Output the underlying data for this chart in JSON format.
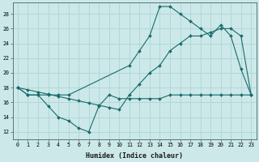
{
  "xlabel": "Humidex (Indice chaleur)",
  "ylabel": "",
  "background_color": "#cce8e8",
  "grid_color": "#b0d8d8",
  "line_color": "#1a6b6b",
  "xlim": [
    -0.5,
    23.5
  ],
  "ylim": [
    11,
    29.5
  ],
  "yticks": [
    12,
    14,
    16,
    18,
    20,
    22,
    24,
    26,
    28
  ],
  "xticks": [
    0,
    1,
    2,
    3,
    4,
    5,
    6,
    7,
    8,
    9,
    10,
    11,
    12,
    13,
    14,
    15,
    16,
    17,
    18,
    19,
    20,
    21,
    22,
    23
  ],
  "series1_x": [
    0,
    1,
    2,
    3,
    4,
    5,
    6,
    7,
    8,
    9,
    10,
    11,
    12,
    13,
    14,
    15,
    16,
    17,
    18,
    19,
    20,
    21,
    22,
    23
  ],
  "series1_y": [
    18,
    17,
    17,
    15.5,
    14,
    13.5,
    12.5,
    12,
    15.5,
    17,
    16.5,
    16.5,
    16.5,
    16.5,
    16.5,
    17,
    17,
    17,
    17,
    17,
    17,
    17,
    17,
    17
  ],
  "series2_x": [
    0,
    1,
    2,
    3,
    4,
    5,
    11,
    12,
    13,
    14,
    15,
    16,
    17,
    18,
    19,
    20,
    21,
    22,
    23
  ],
  "series2_y": [
    18,
    17,
    17,
    17,
    17,
    17,
    21,
    23,
    25,
    29,
    29,
    28,
    27,
    26,
    25,
    26.5,
    25,
    20.5,
    17
  ],
  "series3_x": [
    0,
    1,
    2,
    3,
    4,
    5,
    6,
    7,
    8,
    9,
    10,
    11,
    12,
    13,
    14,
    15,
    16,
    17,
    18,
    19,
    20,
    21,
    22,
    23
  ],
  "series3_y": [
    18,
    17.7,
    17.4,
    17.1,
    16.8,
    16.5,
    16.2,
    15.9,
    15.6,
    15.3,
    15,
    17,
    18.5,
    20,
    21,
    23,
    24,
    25,
    25,
    25.5,
    26,
    26,
    25,
    17
  ]
}
